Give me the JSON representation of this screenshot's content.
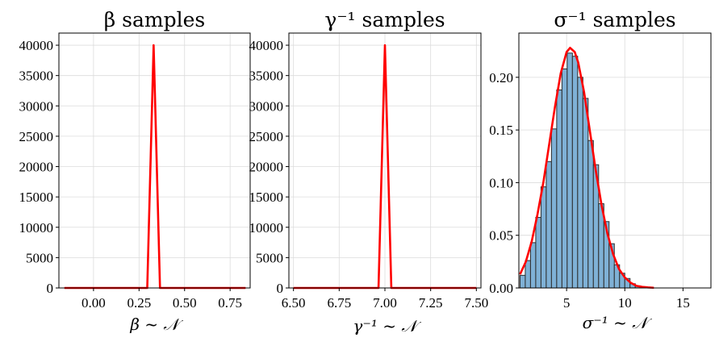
{
  "colors": {
    "curve": "#ff0000",
    "bar": "#7fb1d6",
    "bar_edge": "#2d2d2d",
    "grid": "#dcdcdc"
  },
  "chart_data": [
    {
      "type": "line",
      "title": "β samples",
      "xlabel": "β ~ 𝒩",
      "ylabel": "",
      "xlim": [
        -0.19,
        0.86
      ],
      "ylim": [
        0,
        42000
      ],
      "xticks": [
        0.0,
        0.25,
        0.5,
        0.75
      ],
      "xtick_labels": [
        "0.00",
        "0.25",
        "0.50",
        "0.75"
      ],
      "yticks": [
        0,
        5000,
        10000,
        15000,
        20000,
        25000,
        30000,
        35000,
        40000
      ],
      "ytick_labels": [
        "0",
        "5000",
        "10000",
        "15000",
        "20000",
        "25000",
        "30000",
        "35000",
        "40000"
      ],
      "grid": true,
      "series": [
        {
          "x": [
            -0.16,
            0.295,
            0.33,
            0.365,
            0.835
          ],
          "y": [
            0,
            0,
            40000,
            0,
            0
          ]
        }
      ]
    },
    {
      "type": "line",
      "title": "γ⁻¹ samples",
      "xlabel": "γ⁻¹ ~ 𝒩",
      "ylabel": "",
      "xlim": [
        6.475,
        7.525
      ],
      "ylim": [
        0,
        42000
      ],
      "xticks": [
        6.5,
        6.75,
        7.0,
        7.25,
        7.5
      ],
      "xtick_labels": [
        "6.50",
        "6.75",
        "7.00",
        "7.25",
        "7.50"
      ],
      "yticks": [
        0,
        5000,
        10000,
        15000,
        20000,
        25000,
        30000,
        35000,
        40000
      ],
      "ytick_labels": [
        "0",
        "5000",
        "10000",
        "15000",
        "20000",
        "25000",
        "30000",
        "35000",
        "40000"
      ],
      "grid": true,
      "series": [
        {
          "x": [
            6.5,
            6.965,
            7.0,
            7.035,
            7.5
          ],
          "y": [
            0,
            0,
            40000,
            0,
            0
          ]
        }
      ]
    },
    {
      "type": "bar",
      "title": "σ⁻¹ samples",
      "xlabel": "σ⁻¹ ~ 𝒩",
      "ylabel": "",
      "xlim": [
        0.9,
        17.4
      ],
      "ylim": [
        0,
        0.242
      ],
      "xticks": [
        5,
        10,
        15
      ],
      "xtick_labels": [
        "5",
        "10",
        "15"
      ],
      "yticks": [
        0.0,
        0.05,
        0.1,
        0.15,
        0.2
      ],
      "ytick_labels": [
        "0.00",
        "0.05",
        "0.10",
        "0.15",
        "0.20"
      ],
      "grid": true,
      "histogram": {
        "bin_start": 1.0,
        "bin_width": 0.45,
        "heights": [
          0.012,
          0.026,
          0.043,
          0.067,
          0.096,
          0.12,
          0.151,
          0.188,
          0.208,
          0.223,
          0.22,
          0.2,
          0.18,
          0.14,
          0.117,
          0.08,
          0.063,
          0.042,
          0.022,
          0.014,
          0.009,
          0.004,
          0.002,
          0.001,
          0.0005
        ]
      },
      "series": [
        {
          "x": [
            1.0,
            1.5,
            2.0,
            2.5,
            3.0,
            3.5,
            4.0,
            4.5,
            5.0,
            5.3,
            5.7,
            6.0,
            6.5,
            7.0,
            7.5,
            8.0,
            8.5,
            9.0,
            9.5,
            10.0,
            10.5,
            11.0,
            11.5,
            12.0,
            12.5
          ],
          "y": [
            0.013,
            0.025,
            0.044,
            0.07,
            0.1,
            0.136,
            0.172,
            0.204,
            0.224,
            0.228,
            0.224,
            0.214,
            0.186,
            0.149,
            0.112,
            0.079,
            0.052,
            0.032,
            0.018,
            0.01,
            0.005,
            0.002,
            0.001,
            0.0005,
            0.0002
          ]
        }
      ]
    }
  ]
}
